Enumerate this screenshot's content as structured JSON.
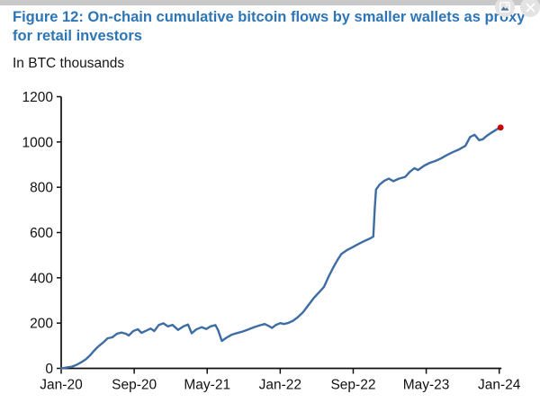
{
  "window": {
    "controls": [
      {
        "icon": "image-export-icon"
      },
      {
        "icon": "close-icon"
      }
    ]
  },
  "header": {
    "title": "Figure 12: On-chain cumulative bitcoin flows by smaller wallets as proxy for retail investors",
    "subtitle": "In BTC thousands"
  },
  "chart_data": {
    "type": "line",
    "title": "Figure 12: On-chain cumulative bitcoin flows by smaller wallets as proxy for retail investors",
    "units_note": "In BTC thousands",
    "x_unit": "months since Jan-2020",
    "xlim": [
      0,
      48
    ],
    "ylim": [
      0,
      1200
    ],
    "grid": false,
    "legend": null,
    "line_color": "#3E6DA3",
    "endpoint_color": "#CC0000",
    "axis_color": "#111111",
    "y_ticks": [
      0,
      200,
      400,
      600,
      800,
      1000,
      1200
    ],
    "x_ticks": [
      {
        "m": 0,
        "label": "Jan-20"
      },
      {
        "m": 8,
        "label": "Sep-20"
      },
      {
        "m": 16,
        "label": "May-21"
      },
      {
        "m": 24,
        "label": "Jan-22"
      },
      {
        "m": 32,
        "label": "Sep-22"
      },
      {
        "m": 40,
        "label": "May-23"
      },
      {
        "m": 48,
        "label": "Jan-24"
      }
    ],
    "points": [
      [
        0,
        0
      ],
      [
        0.5,
        3
      ],
      [
        1.2,
        8
      ],
      [
        1.7,
        16
      ],
      [
        2.2,
        27
      ],
      [
        2.7,
        40
      ],
      [
        3.2,
        59
      ],
      [
        3.6,
        78
      ],
      [
        4.1,
        98
      ],
      [
        4.6,
        114
      ],
      [
        5.1,
        133
      ],
      [
        5.6,
        137
      ],
      [
        6.1,
        153
      ],
      [
        6.6,
        158
      ],
      [
        7.1,
        153
      ],
      [
        7.4,
        145
      ],
      [
        7.9,
        165
      ],
      [
        8.4,
        173
      ],
      [
        8.8,
        157
      ],
      [
        9.3,
        166
      ],
      [
        9.8,
        176
      ],
      [
        10.2,
        165
      ],
      [
        10.7,
        192
      ],
      [
        11.2,
        199
      ],
      [
        11.7,
        185
      ],
      [
        12.2,
        192
      ],
      [
        12.8,
        170
      ],
      [
        13.4,
        186
      ],
      [
        13.9,
        194
      ],
      [
        14.3,
        155
      ],
      [
        14.8,
        172
      ],
      [
        15.4,
        182
      ],
      [
        15.9,
        174
      ],
      [
        16.4,
        186
      ],
      [
        16.9,
        191
      ],
      [
        17.2,
        168
      ],
      [
        17.6,
        121
      ],
      [
        18.1,
        135
      ],
      [
        18.7,
        149
      ],
      [
        19.3,
        156
      ],
      [
        19.9,
        163
      ],
      [
        20.5,
        172
      ],
      [
        21.1,
        181
      ],
      [
        21.7,
        189
      ],
      [
        22.3,
        196
      ],
      [
        22.8,
        186
      ],
      [
        23.1,
        179
      ],
      [
        23.5,
        191
      ],
      [
        24.0,
        200
      ],
      [
        24.4,
        196
      ],
      [
        24.9,
        201
      ],
      [
        25.4,
        210
      ],
      [
        25.9,
        225
      ],
      [
        26.5,
        248
      ],
      [
        27.1,
        280
      ],
      [
        27.7,
        312
      ],
      [
        28.3,
        338
      ],
      [
        28.8,
        360
      ],
      [
        29.3,
        405
      ],
      [
        29.8,
        445
      ],
      [
        30.3,
        480
      ],
      [
        30.7,
        505
      ],
      [
        31.3,
        522
      ],
      [
        31.9,
        535
      ],
      [
        32.6,
        550
      ],
      [
        33.3,
        564
      ],
      [
        33.9,
        575
      ],
      [
        34.2,
        582
      ],
      [
        34.35,
        700
      ],
      [
        34.5,
        790
      ],
      [
        34.9,
        812
      ],
      [
        35.4,
        828
      ],
      [
        35.9,
        838
      ],
      [
        36.4,
        827
      ],
      [
        37.0,
        838
      ],
      [
        37.7,
        846
      ],
      [
        38.2,
        868
      ],
      [
        38.7,
        884
      ],
      [
        39.1,
        876
      ],
      [
        39.8,
        896
      ],
      [
        40.4,
        908
      ],
      [
        41.0,
        916
      ],
      [
        41.6,
        927
      ],
      [
        42.3,
        943
      ],
      [
        42.9,
        955
      ],
      [
        43.6,
        967
      ],
      [
        44.3,
        983
      ],
      [
        44.8,
        1022
      ],
      [
        45.3,
        1032
      ],
      [
        45.8,
        1008
      ],
      [
        46.2,
        1012
      ],
      [
        46.6,
        1026
      ],
      [
        47.1,
        1040
      ],
      [
        47.6,
        1052
      ],
      [
        48.0,
        1062
      ]
    ]
  }
}
